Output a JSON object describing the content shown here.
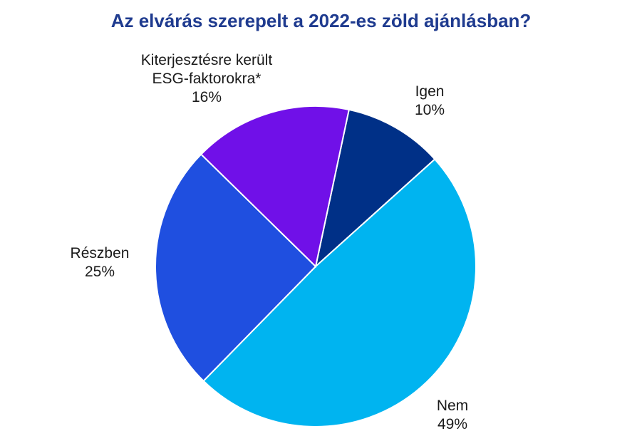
{
  "chart_data": {
    "type": "pie",
    "title": "Az elvárás szerepelt a 2022-es zöld ajánlásban?",
    "slices": [
      {
        "label": "Igen",
        "value": 10,
        "value_text": "10%",
        "color": "#003087"
      },
      {
        "label": "Nem",
        "value": 49,
        "value_text": "49%",
        "color": "#00b4f0"
      },
      {
        "label": "Részben",
        "value": 25,
        "value_text": "25%",
        "color": "#1f4fe0"
      },
      {
        "label": "Kiterjesztésre került ESG-faktorokra*",
        "label_lines": [
          "Kiterjesztésre került",
          "ESG-faktorokra*"
        ],
        "value": 16,
        "value_text": "16%",
        "color": "#7010e8"
      }
    ],
    "start_angle_deg": 12,
    "direction": "clockwise",
    "slice_border_color": "#ffffff"
  }
}
